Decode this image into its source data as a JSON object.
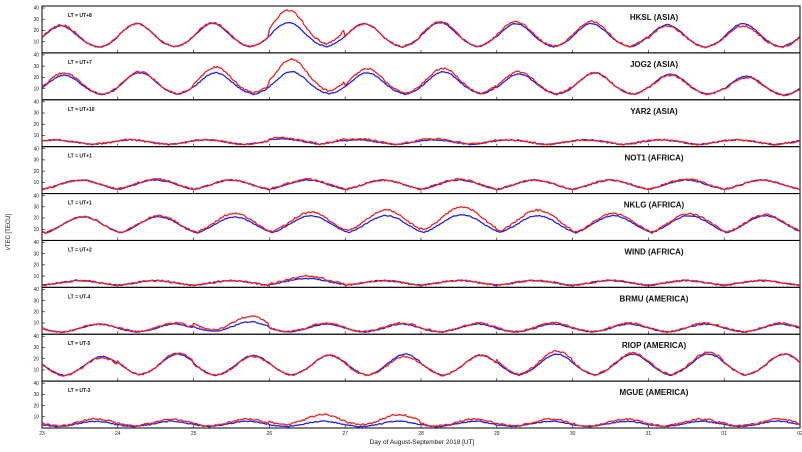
{
  "chart_data": {
    "type": "line",
    "title": "",
    "xlabel": "Day of August-September 2018 [UT]",
    "ylabel": "vTEC [TECU]",
    "x_ticks": [
      "23",
      "24",
      "25",
      "26",
      "27",
      "28",
      "29",
      "30",
      "31",
      "01",
      "02"
    ],
    "xlim": [
      "Aug 23 00UT",
      "Sep 02 00UT"
    ],
    "ylim": [
      0,
      40
    ],
    "y_ticks": [
      10,
      20,
      30,
      40
    ],
    "event_markers_days": [
      25.45,
      25.75,
      26.0,
      26.3,
      26.7,
      27.7
    ],
    "series_colors": {
      "observed": "#ee2222",
      "reference": "#2222ee"
    },
    "panels": [
      {
        "station": "HKSL (ASIA)",
        "lt": "LT = UT+8",
        "region": "asia",
        "peak_hour": 6,
        "obs_peaks": [
          25,
          26,
          27,
          38,
          26,
          28,
          28,
          28,
          24,
          24
        ],
        "ref_peaks": [
          24,
          26,
          26,
          27,
          26,
          27,
          26,
          26,
          25,
          26
        ]
      },
      {
        "station": "JOG2 (ASIA)",
        "lt": "LT = UT+7",
        "region": "asia",
        "peak_hour": 7,
        "obs_peaks": [
          24,
          25,
          29,
          36,
          28,
          28,
          25,
          24,
          22,
          20
        ],
        "ref_peaks": [
          22,
          24,
          24,
          25,
          24,
          25,
          23,
          24,
          23,
          21
        ]
      },
      {
        "station": "YAR2 (ASIA)",
        "lt": "LT = UT+10",
        "region": "asia-quiet",
        "peak_hour": 4,
        "obs_peaks": [
          6,
          6,
          6,
          8,
          7,
          7,
          6,
          6,
          6,
          6
        ],
        "ref_peaks": [
          6,
          6,
          6,
          7,
          6,
          6,
          6,
          6,
          6,
          6
        ]
      },
      {
        "station": "NOT1 (AFRICA)",
        "lt": "LT = UT+1",
        "region": "africa",
        "peak_hour": 12,
        "obs_peaks": [
          12,
          13,
          12,
          13,
          12,
          13,
          12,
          12,
          13,
          12
        ],
        "ref_peaks": [
          12,
          12,
          12,
          12,
          12,
          12,
          12,
          12,
          12,
          12
        ]
      },
      {
        "station": "NKLG (AFRICA)",
        "lt": "LT = UT+1",
        "region": "africa",
        "peak_hour": 13,
        "obs_peaks": [
          21,
          22,
          24,
          25,
          27,
          30,
          27,
          24,
          24,
          23
        ],
        "ref_peaks": [
          21,
          21,
          21,
          22,
          22,
          23,
          22,
          22,
          22,
          22
        ]
      },
      {
        "station": "WIND (AFRICA)",
        "lt": "LT = UT+2",
        "region": "africa",
        "peak_hour": 12,
        "obs_peaks": [
          6,
          6,
          6,
          10,
          6,
          6,
          6,
          6,
          6,
          6
        ],
        "ref_peaks": [
          6,
          6,
          6,
          8,
          6,
          6,
          6,
          6,
          6,
          6
        ]
      },
      {
        "station": "BRMU (AMERICA)",
        "lt": "LT = UT-4",
        "region": "america",
        "peak_hour": 18,
        "obs_peaks": [
          9,
          10,
          16,
          10,
          10,
          10,
          10,
          10,
          10,
          10
        ],
        "ref_peaks": [
          9,
          9,
          11,
          9,
          9,
          9,
          9,
          9,
          9,
          9
        ]
      },
      {
        "station": "RIOP (AMERICA)",
        "lt": "LT = UT-5",
        "region": "america-eq",
        "peak_hour": 19,
        "obs_peaks": [
          21,
          25,
          22,
          23,
          22,
          23,
          27,
          25,
          26,
          24
        ],
        "ref_peaks": [
          22,
          24,
          23,
          23,
          24,
          23,
          24,
          24,
          24,
          24
        ]
      },
      {
        "station": "MGUE (AMERICA)",
        "lt": "LT = UT-3",
        "region": "america-quiet",
        "peak_hour": 17,
        "obs_peaks": [
          8,
          8,
          8,
          12,
          12,
          8,
          8,
          8,
          8,
          8
        ],
        "ref_peaks": [
          6,
          6,
          6,
          6,
          6,
          6,
          6,
          6,
          6,
          6
        ]
      }
    ]
  }
}
